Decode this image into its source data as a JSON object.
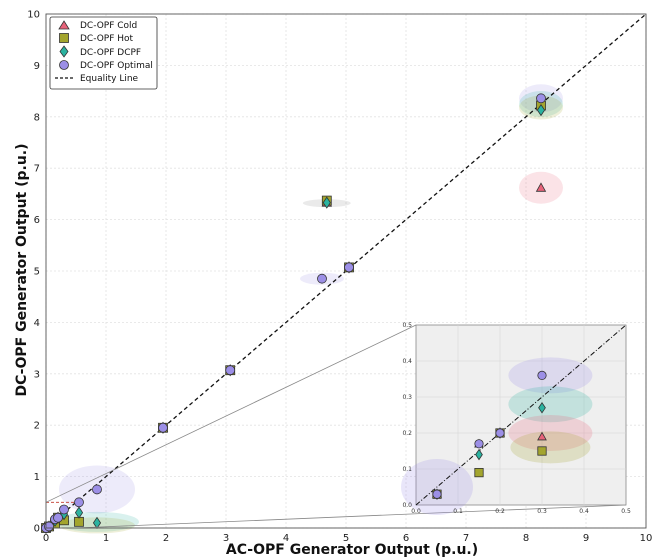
{
  "chart_data": {
    "type": "scatter",
    "xlabel": "AC-OPF Generator Output (p.u.)",
    "ylabel": "DC-OPF Generator Output (p.u.)",
    "xlim": [
      0,
      10
    ],
    "ylim": [
      0,
      10
    ],
    "x_ticks": [
      "0",
      "1",
      "2",
      "3",
      "4",
      "5",
      "6",
      "7",
      "8",
      "9",
      "10"
    ],
    "y_ticks": [
      "0",
      "1",
      "2",
      "3",
      "4",
      "5",
      "6",
      "7",
      "8",
      "9",
      "10"
    ],
    "grid": true,
    "legend_position": "top-left",
    "legend": [
      "DC-OPF Cold",
      "DC-OPF Hot",
      "DC-OPF DCPF",
      "DC-OPF Optimal",
      "Equality Line"
    ],
    "series": [
      {
        "name": "DC-OPF Cold",
        "marker": "triangle",
        "color": "#e8637a",
        "points": [
          [
            0.0,
            0.0
          ],
          [
            0.05,
            0.03
          ],
          [
            0.15,
            0.17
          ],
          [
            0.2,
            0.2
          ],
          [
            0.3,
            0.19
          ],
          [
            1.95,
            1.95
          ],
          [
            3.07,
            3.07
          ],
          [
            4.68,
            6.33
          ],
          [
            5.05,
            5.07
          ],
          [
            8.25,
            6.62
          ]
        ]
      },
      {
        "name": "DC-OPF Hot",
        "marker": "square",
        "color": "#a3a52e",
        "points": [
          [
            0.0,
            0.0
          ],
          [
            0.05,
            0.03
          ],
          [
            0.15,
            0.09
          ],
          [
            0.2,
            0.2
          ],
          [
            0.3,
            0.15
          ],
          [
            0.55,
            0.12
          ],
          [
            1.95,
            1.95
          ],
          [
            3.07,
            3.07
          ],
          [
            4.68,
            6.37
          ],
          [
            5.05,
            5.07
          ],
          [
            8.25,
            8.22
          ]
        ]
      },
      {
        "name": "DC-OPF DCPF",
        "marker": "diamond",
        "color": "#2bb3a0",
        "points": [
          [
            0.0,
            0.0
          ],
          [
            0.05,
            0.03
          ],
          [
            0.15,
            0.14
          ],
          [
            0.2,
            0.2
          ],
          [
            0.3,
            0.27
          ],
          [
            0.55,
            0.3
          ],
          [
            0.85,
            0.1
          ],
          [
            1.95,
            1.95
          ],
          [
            3.07,
            3.07
          ],
          [
            4.68,
            6.33
          ],
          [
            5.05,
            5.07
          ],
          [
            8.25,
            8.13
          ]
        ]
      },
      {
        "name": "DC-OPF Optimal",
        "marker": "circle",
        "color": "#9c8fe6",
        "points": [
          [
            0.0,
            0.0
          ],
          [
            0.05,
            0.03
          ],
          [
            0.15,
            0.17
          ],
          [
            0.2,
            0.2
          ],
          [
            0.3,
            0.36
          ],
          [
            0.55,
            0.5
          ],
          [
            0.85,
            0.75
          ],
          [
            1.95,
            1.95
          ],
          [
            3.07,
            3.07
          ],
          [
            4.6,
            4.85
          ],
          [
            5.05,
            5.07
          ],
          [
            8.25,
            8.36
          ]
        ]
      }
    ],
    "inset": {
      "xlim": [
        0,
        0.5
      ],
      "ylim": [
        0,
        0.5
      ],
      "x_ticks": [
        "0.0",
        "0.1",
        "0.2",
        "0.3",
        "0.4",
        "0.5"
      ],
      "y_ticks": [
        "0.0",
        "0.1",
        "0.2",
        "0.3",
        "0.4",
        "0.5"
      ]
    }
  },
  "colors": {
    "cold": "#e8637a",
    "hot": "#a3a52e",
    "dcpf": "#2bb3a0",
    "optimal": "#9c8fe6",
    "equality": "#111111"
  }
}
